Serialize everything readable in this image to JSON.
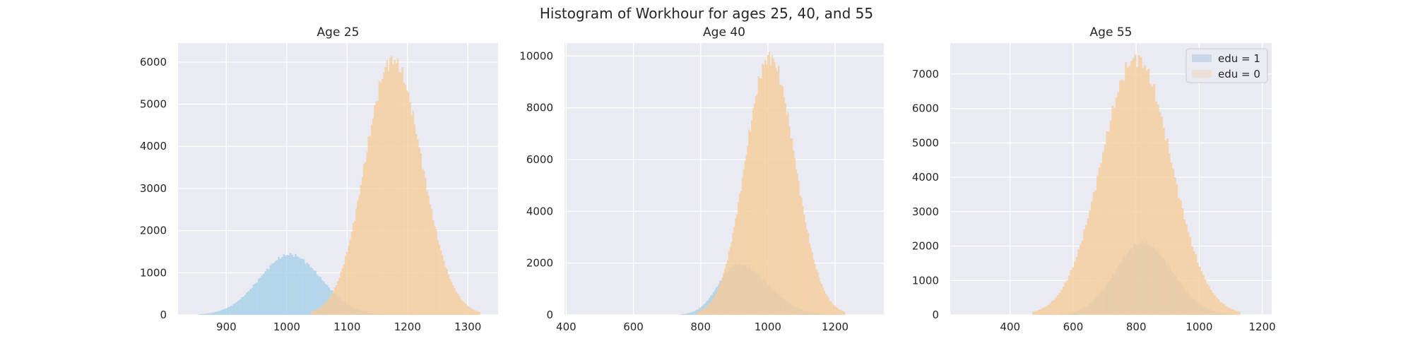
{
  "figure": {
    "title": "Histogram of Workhour for ages 25, 40, and 55",
    "background": "#ffffff",
    "axes_background": "#eaeaf2",
    "grid_color": "#ffffff",
    "colors": {
      "edu1": "#a6cfe8",
      "edu0": "#f5cc9a"
    },
    "legend": {
      "location": "top-right of last panel",
      "entries": [
        {
          "label": "edu = 1",
          "color": "#c9d6ea"
        },
        {
          "label": "edu = 0",
          "color": "#eddfd8"
        }
      ]
    }
  },
  "chart_data": [
    {
      "type": "histogram",
      "title": "Age 25",
      "xlim": [
        820,
        1350
      ],
      "ylim": [
        0,
        6450
      ],
      "xticks": [
        900,
        1000,
        1100,
        1200,
        1300
      ],
      "yticks": [
        0,
        1000,
        2000,
        3000,
        4000,
        5000,
        6000
      ],
      "series": [
        {
          "name": "edu = 1",
          "peak_x": 1005,
          "peak_count": 1430,
          "range": [
            855,
            1160
          ]
        },
        {
          "name": "edu = 0",
          "peak_x": 1175,
          "peak_count": 6050,
          "range": [
            1040,
            1320
          ]
        }
      ]
    },
    {
      "type": "histogram",
      "title": "Age 40",
      "xlim": [
        395,
        1345
      ],
      "ylim": [
        0,
        10500
      ],
      "xticks": [
        400,
        600,
        800,
        1000,
        1200
      ],
      "yticks": [
        0,
        2000,
        4000,
        6000,
        8000,
        10000
      ],
      "series": [
        {
          "name": "edu = 1",
          "peak_x": 910,
          "peak_count": 1950,
          "range": [
            740,
            1180
          ]
        },
        {
          "name": "edu = 0",
          "peak_x": 1005,
          "peak_count": 9950,
          "range": [
            790,
            1230
          ]
        }
      ]
    },
    {
      "type": "histogram",
      "title": "Age 55",
      "xlim": [
        210,
        1230
      ],
      "ylim": [
        0,
        7900
      ],
      "xticks": [
        400,
        600,
        800,
        1000,
        1200
      ],
      "yticks": [
        0,
        1000,
        2000,
        3000,
        4000,
        5000,
        6000,
        7000
      ],
      "series": [
        {
          "name": "edu = 1",
          "peak_x": 820,
          "peak_count": 2100,
          "range": [
            560,
            1100
          ]
        },
        {
          "name": "edu = 0",
          "peak_x": 800,
          "peak_count": 7450,
          "range": [
            470,
            1130
          ]
        }
      ]
    }
  ]
}
